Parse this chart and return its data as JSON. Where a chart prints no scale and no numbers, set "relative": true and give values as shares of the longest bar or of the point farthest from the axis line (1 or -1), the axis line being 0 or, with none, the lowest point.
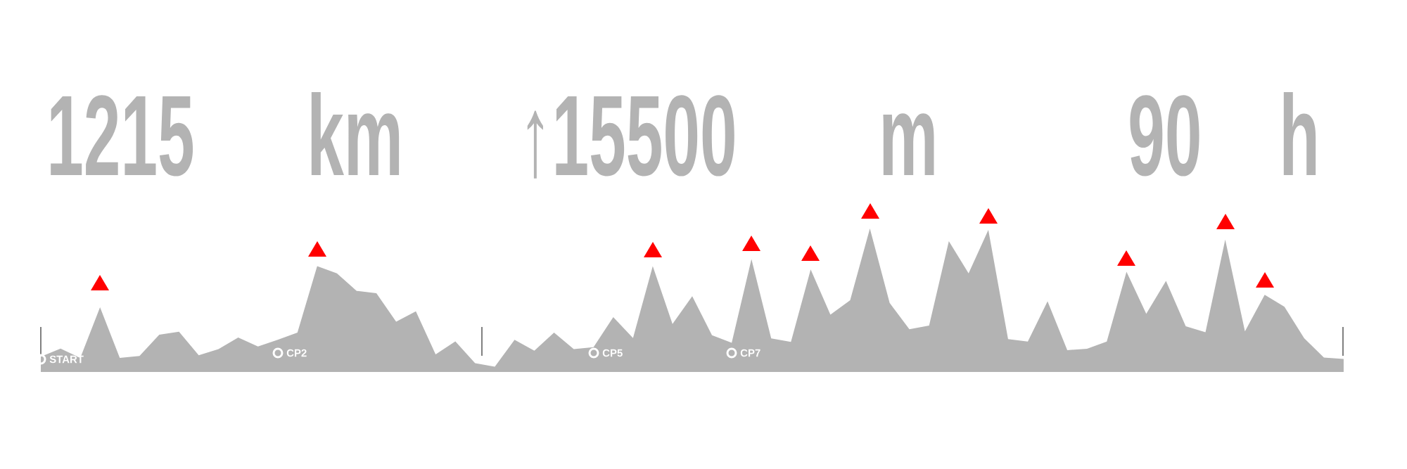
{
  "chart_data": {
    "type": "area",
    "relative": true,
    "categories": [
      null,
      null,
      null,
      null,
      null,
      null,
      null,
      null,
      null,
      null,
      null,
      null,
      null,
      null,
      null,
      null,
      null,
      null,
      null,
      null,
      null,
      null,
      null,
      null,
      null,
      null,
      null,
      null,
      null,
      null,
      null,
      null,
      null,
      null,
      null,
      null,
      null,
      null,
      null,
      null,
      null,
      null,
      null,
      null,
      null,
      null,
      null,
      null,
      null,
      null,
      null,
      null,
      null,
      null,
      null,
      null,
      null,
      null,
      null,
      null,
      null,
      null,
      null,
      null,
      null,
      null,
      null
    ],
    "series": [
      {
        "color": "#b3b3b3",
        "values": [
          0.106,
          0.163,
          0.098,
          0.451,
          0.098,
          0.112,
          0.26,
          0.28,
          0.116,
          0.159,
          0.24,
          0.177,
          0.224,
          0.274,
          0.738,
          0.687,
          0.565,
          0.549,
          0.35,
          0.423,
          0.122,
          0.213,
          0.061,
          0.037,
          0.224,
          0.148,
          0.274,
          0.159,
          0.173,
          0.382,
          0.236,
          0.738,
          0.335,
          0.528,
          0.256,
          0.203,
          0.787,
          0.234,
          0.209,
          0.715,
          0.4,
          0.5,
          1.0,
          0.481,
          0.298,
          0.323,
          0.912,
          0.688,
          0.99,
          0.229,
          0.212,
          0.492,
          0.152,
          0.162,
          0.212,
          0.698,
          0.406,
          0.635,
          0.319,
          0.277,
          0.923,
          0.283,
          0.538,
          0.454,
          0.235,
          0.1,
          0.09
        ]
      }
    ],
    "annotations": [
      "1215",
      "km",
      "↑15500",
      "m",
      "90",
      "h",
      "START",
      "CP2",
      "CP5",
      "CP7"
    ]
  }
}
